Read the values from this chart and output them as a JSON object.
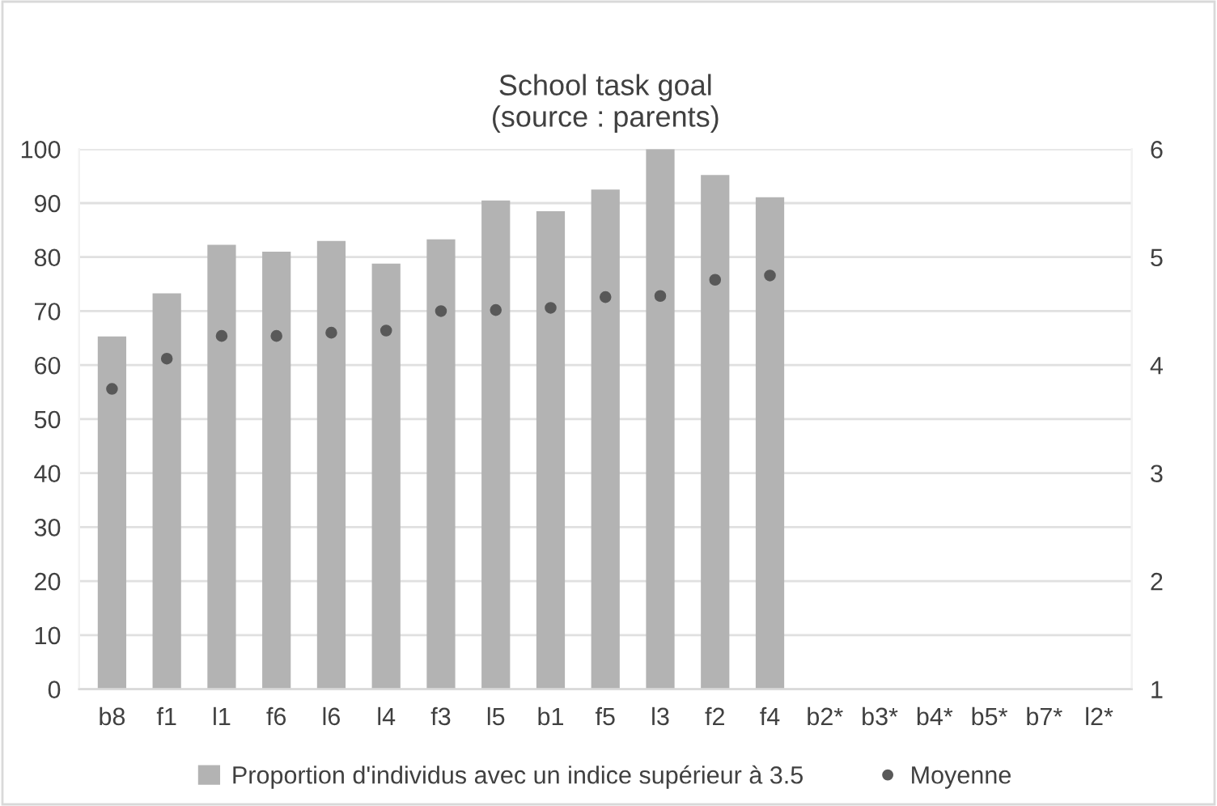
{
  "chart_data": {
    "type": "bar",
    "title": "School task goal\n(source : parents)",
    "categories": [
      "b8",
      "f1",
      "l1",
      "f6",
      "l6",
      "l4",
      "f3",
      "l5",
      "b1",
      "f5",
      "l3",
      "f2",
      "f4",
      "b2*",
      "b3*",
      "b4*",
      "b5*",
      "b7*",
      "l2*"
    ],
    "series": [
      {
        "name": "Proportion d'individus avec un indice supérieur à 3.5",
        "color": "#b3b3b3",
        "values": [
          65.3,
          73.3,
          82.3,
          81,
          83,
          78.8,
          83.3,
          90.5,
          88.5,
          92.5,
          100,
          95.2,
          91.1,
          null,
          null,
          null,
          null,
          null,
          null
        ]
      },
      {
        "name": "Moyenne",
        "type": "scatter",
        "axis": "y2",
        "color": "#595959",
        "marker": "circle",
        "values": [
          3.78,
          4.06,
          4.27,
          4.27,
          4.3,
          4.32,
          4.5,
          4.51,
          4.53,
          4.63,
          4.64,
          4.79,
          4.83,
          null,
          null,
          null,
          null,
          null,
          null
        ]
      }
    ],
    "ylim": [
      0,
      100
    ],
    "yticks": [
      0,
      10,
      20,
      30,
      40,
      50,
      60,
      70,
      80,
      90,
      100
    ],
    "y2lim": [
      1,
      6
    ],
    "y2ticks": [
      1,
      2,
      3,
      4,
      5,
      6
    ],
    "grid": "y",
    "legend": "bottom"
  }
}
